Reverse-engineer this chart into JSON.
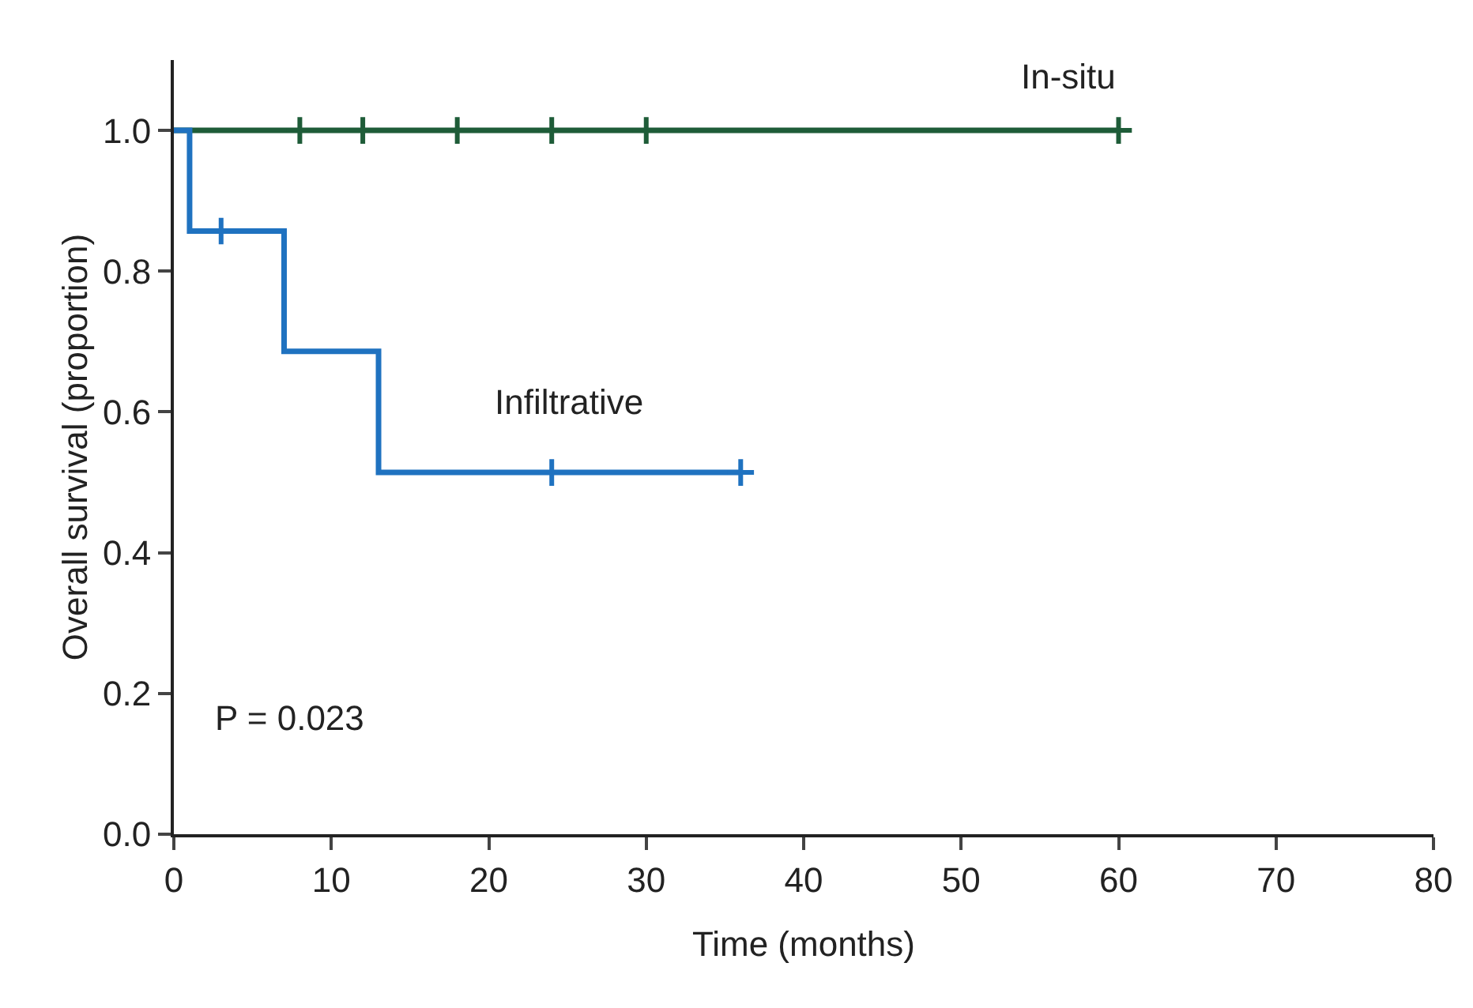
{
  "chart_data": {
    "type": "step",
    "xlabel": "Time (months)",
    "ylabel": "Overall survival (proportion)",
    "xlim": [
      0,
      80
    ],
    "xticks": [
      0,
      10,
      20,
      30,
      40,
      50,
      60,
      70,
      80
    ],
    "ylim": [
      0,
      1.1
    ],
    "yticks": [
      {
        "value": 0,
        "label": "0.0"
      },
      {
        "value": 0.2,
        "label": "0.2"
      },
      {
        "value": 0.4,
        "label": "0.4"
      },
      {
        "value": 0.6,
        "label": "0.6"
      },
      {
        "value": 0.8,
        "label": "0.8"
      },
      {
        "value": 1,
        "label": "1.0"
      }
    ],
    "grid": false,
    "legend": false,
    "line_style": "solid",
    "series": [
      {
        "name": "In-situ",
        "color": "#1e5c38",
        "x": [
          0,
          60
        ],
        "values": [
          1,
          1
        ]
      },
      {
        "name": "Infiltrative",
        "color": "#1f72c0",
        "x": [
          0,
          1,
          7,
          13,
          36
        ],
        "values": [
          1,
          0.857,
          0.686,
          0.514,
          0.514
        ]
      },
      {
        "type": "scatter",
        "marker": "cross",
        "color": "#1e5c38",
        "x": [
          8,
          12,
          18,
          24,
          30,
          60
        ],
        "values": [
          1,
          1,
          1,
          1,
          1,
          1
        ]
      },
      {
        "type": "scatter",
        "marker": "cross",
        "color": "#1f72c0",
        "x": [
          3,
          24,
          36
        ],
        "values": [
          0.857,
          0.514,
          0.514
        ]
      }
    ],
    "annotations": [
      "P = 0.023"
    ]
  }
}
